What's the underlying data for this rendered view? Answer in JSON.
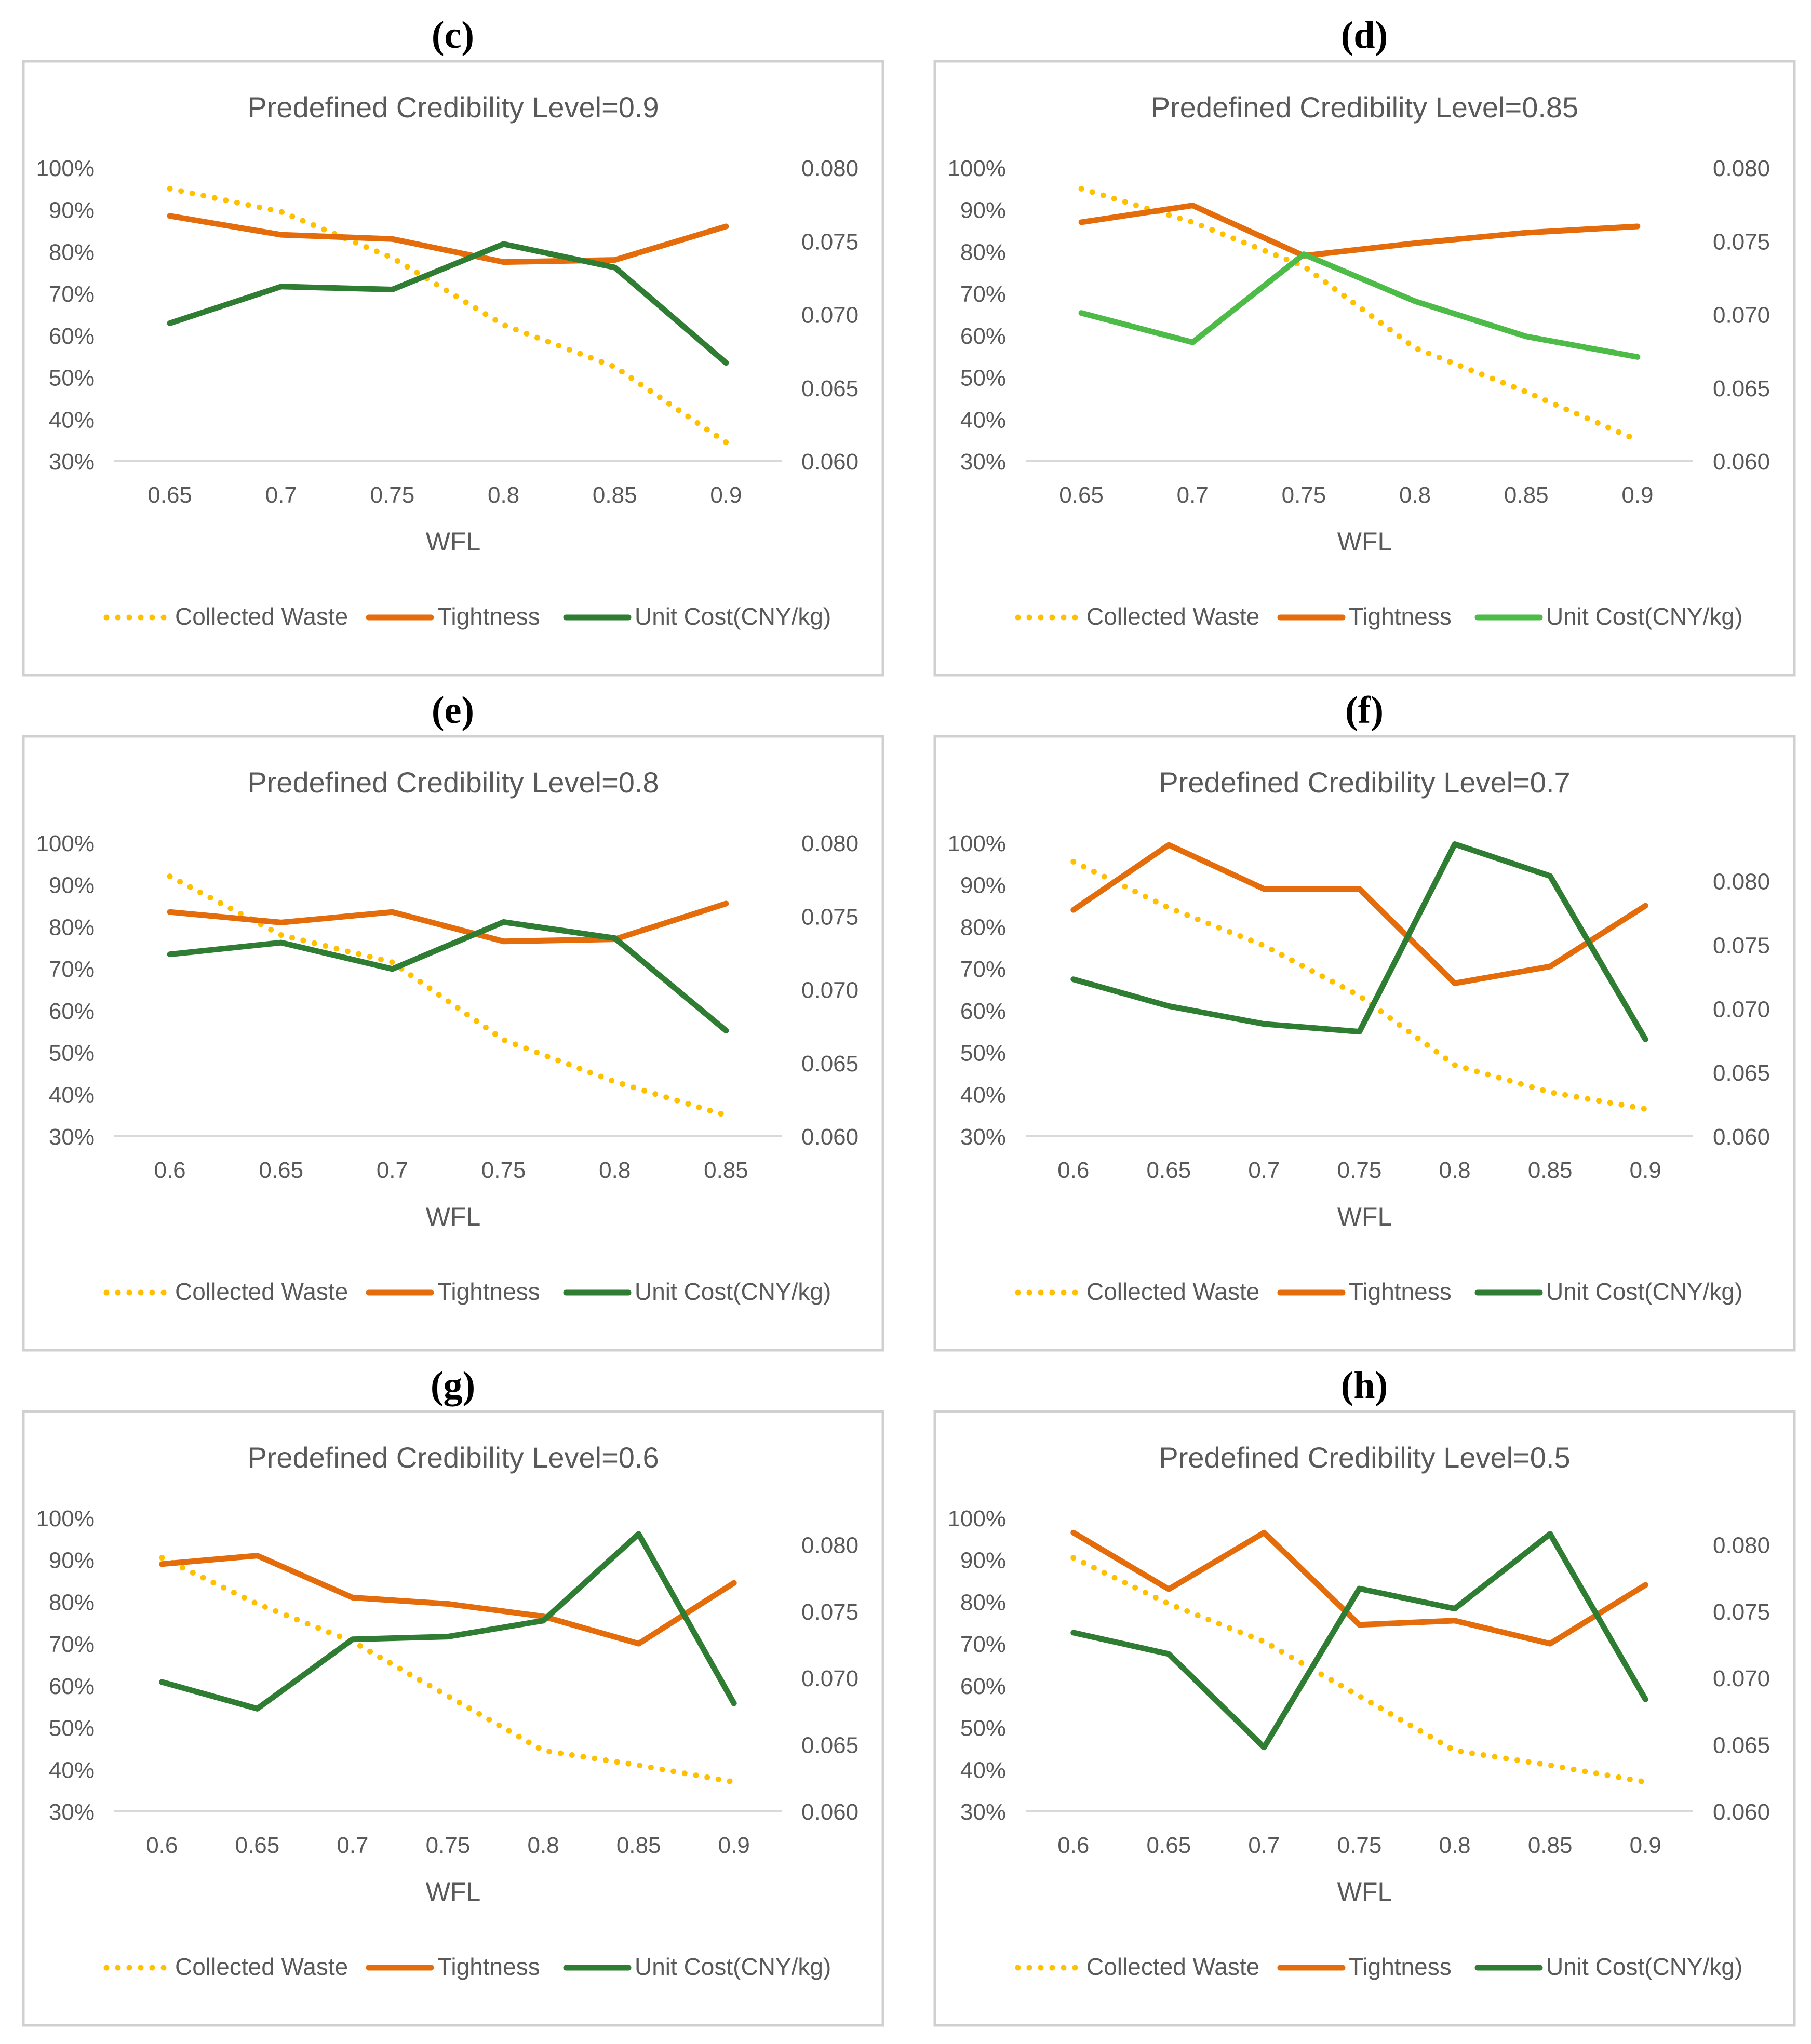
{
  "colors": {
    "collected": "#FFC000",
    "tightness": "#E46C0A",
    "unit_dark": "#2E7D32",
    "unit_light": "#4CBB47",
    "panel_border": "#D0D0D0",
    "text": "#595959",
    "axis": "#D9D9D9"
  },
  "chart_data": [
    {
      "panel_label": "(c)",
      "type": "line",
      "title": "Predefined Credibility Level=0.9",
      "xlabel": "WFL",
      "categories": [
        "0.65",
        "0.7",
        "0.75",
        "0.8",
        "0.85",
        "0.9"
      ],
      "y_left": {
        "range": [
          0.3,
          1.0
        ],
        "ticks": [
          "30%",
          "40%",
          "50%",
          "60%",
          "70%",
          "80%",
          "90%",
          "100%"
        ]
      },
      "y_right": {
        "range": [
          0.06,
          0.08
        ],
        "ticks": [
          "0.060",
          "0.065",
          "0.070",
          "0.075",
          "0.080"
        ]
      },
      "legend_position": "bottom",
      "series": [
        {
          "name": "Collected Waste",
          "axis": "left",
          "style": "dotted",
          "color_key": "collected",
          "values": [
            0.95,
            0.895,
            0.785,
            0.625,
            0.525,
            0.345
          ]
        },
        {
          "name": "Tightness",
          "axis": "left",
          "style": "solid",
          "color_key": "tightness",
          "values": [
            0.885,
            0.84,
            0.83,
            0.775,
            0.78,
            0.86
          ]
        },
        {
          "name": "Unit Cost(CNY/kg)",
          "axis": "right",
          "style": "solid",
          "color_key": "unit_dark",
          "values": [
            0.0694,
            0.0719,
            0.0717,
            0.0748,
            0.0732,
            0.0667
          ]
        }
      ]
    },
    {
      "panel_label": "(d)",
      "type": "line",
      "title": "Predefined Credibility Level=0.85",
      "xlabel": "WFL",
      "categories": [
        "0.65",
        "0.7",
        "0.75",
        "0.8",
        "0.85",
        "0.9"
      ],
      "y_left": {
        "range": [
          0.3,
          1.0
        ],
        "ticks": [
          "30%",
          "40%",
          "50%",
          "60%",
          "70%",
          "80%",
          "90%",
          "100%"
        ]
      },
      "y_right": {
        "range": [
          0.06,
          0.08
        ],
        "ticks": [
          "0.060",
          "0.065",
          "0.070",
          "0.075",
          "0.080"
        ]
      },
      "legend_position": "bottom",
      "series": [
        {
          "name": "Collected Waste",
          "axis": "left",
          "style": "dotted",
          "color_key": "collected",
          "values": [
            0.95,
            0.87,
            0.765,
            0.57,
            0.465,
            0.35
          ]
        },
        {
          "name": "Tightness",
          "axis": "left",
          "style": "solid",
          "color_key": "tightness",
          "values": [
            0.87,
            0.91,
            0.79,
            0.82,
            0.845,
            0.86
          ]
        },
        {
          "name": "Unit Cost(CNY/kg)",
          "axis": "right",
          "style": "solid",
          "color_key": "unit_light",
          "values": [
            0.0701,
            0.0681,
            0.0741,
            0.0709,
            0.0685,
            0.0671
          ]
        }
      ]
    },
    {
      "panel_label": "(e)",
      "type": "line",
      "title": "Predefined Credibility Level=0.8",
      "xlabel": "WFL",
      "categories": [
        "0.6",
        "0.65",
        "0.7",
        "0.75",
        "0.8",
        "0.85"
      ],
      "y_left": {
        "range": [
          0.3,
          1.0
        ],
        "ticks": [
          "30%",
          "40%",
          "50%",
          "60%",
          "70%",
          "80%",
          "90%",
          "100%"
        ]
      },
      "y_right": {
        "range": [
          0.06,
          0.08
        ],
        "ticks": [
          "0.060",
          "0.065",
          "0.070",
          "0.075",
          "0.080"
        ]
      },
      "legend_position": "bottom",
      "series": [
        {
          "name": "Collected Waste",
          "axis": "left",
          "style": "dotted",
          "color_key": "collected",
          "values": [
            0.92,
            0.78,
            0.715,
            0.53,
            0.43,
            0.35
          ]
        },
        {
          "name": "Tightness",
          "axis": "left",
          "style": "solid",
          "color_key": "tightness",
          "values": [
            0.835,
            0.81,
            0.835,
            0.765,
            0.77,
            0.855
          ]
        },
        {
          "name": "Unit Cost(CNY/kg)",
          "axis": "right",
          "style": "solid",
          "color_key": "unit_dark",
          "values": [
            0.0724,
            0.0732,
            0.0714,
            0.0746,
            0.0735,
            0.0672
          ]
        }
      ]
    },
    {
      "panel_label": "(f)",
      "type": "line",
      "title": "Predefined Credibility Level=0.7",
      "xlabel": "WFL",
      "categories": [
        "0.6",
        "0.65",
        "0.7",
        "0.75",
        "0.8",
        "0.85",
        "0.9"
      ],
      "y_left": {
        "range": [
          0.3,
          1.0
        ],
        "ticks": [
          "30%",
          "40%",
          "50%",
          "60%",
          "70%",
          "80%",
          "90%",
          "100%"
        ]
      },
      "y_right": {
        "range": [
          0.06,
          0.083
        ],
        "ticks": [
          "0.060",
          "0.065",
          "0.070",
          "0.075",
          "0.080"
        ]
      },
      "legend_position": "bottom",
      "series": [
        {
          "name": "Collected Waste",
          "axis": "left",
          "style": "dotted",
          "color_key": "collected",
          "values": [
            0.955,
            0.845,
            0.755,
            0.635,
            0.47,
            0.405,
            0.365
          ]
        },
        {
          "name": "Tightness",
          "axis": "left",
          "style": "solid",
          "color_key": "tightness",
          "values": [
            0.84,
            0.995,
            0.89,
            0.89,
            0.665,
            0.705,
            0.85
          ]
        },
        {
          "name": "Unit Cost(CNY/kg)",
          "axis": "right",
          "style": "solid",
          "color_key": "unit_dark",
          "values": [
            0.0723,
            0.0702,
            0.0688,
            0.0682,
            0.0829,
            0.0804,
            0.0676
          ]
        }
      ]
    },
    {
      "panel_label": "(g)",
      "type": "line",
      "title": "Predefined Credibility Level=0.6",
      "xlabel": "WFL",
      "categories": [
        "0.6",
        "0.65",
        "0.7",
        "0.75",
        "0.8",
        "0.85",
        "0.9"
      ],
      "y_left": {
        "range": [
          0.3,
          1.0
        ],
        "ticks": [
          "30%",
          "40%",
          "50%",
          "60%",
          "70%",
          "80%",
          "90%",
          "100%"
        ]
      },
      "y_right": {
        "range": [
          0.06,
          0.082
        ],
        "ticks": [
          "0.060",
          "0.065",
          "0.070",
          "0.075",
          "0.080"
        ]
      },
      "legend_position": "bottom",
      "series": [
        {
          "name": "Collected Waste",
          "axis": "left",
          "style": "dotted",
          "color_key": "collected",
          "values": [
            0.905,
            0.795,
            0.705,
            0.575,
            0.445,
            0.41,
            0.37
          ]
        },
        {
          "name": "Tightness",
          "axis": "left",
          "style": "solid",
          "color_key": "tightness",
          "values": [
            0.89,
            0.91,
            0.81,
            0.795,
            0.765,
            0.7,
            0.845
          ]
        },
        {
          "name": "Unit Cost(CNY/kg)",
          "axis": "right",
          "style": "solid",
          "color_key": "unit_dark",
          "values": [
            0.0697,
            0.0677,
            0.0729,
            0.0731,
            0.0743,
            0.0808,
            0.0681
          ]
        }
      ]
    },
    {
      "panel_label": "(h)",
      "type": "line",
      "title": "Predefined Credibility Level=0.5",
      "xlabel": "WFL",
      "categories": [
        "0.6",
        "0.65",
        "0.7",
        "0.75",
        "0.8",
        "0.85",
        "0.9"
      ],
      "y_left": {
        "range": [
          0.3,
          1.0
        ],
        "ticks": [
          "30%",
          "40%",
          "50%",
          "60%",
          "70%",
          "80%",
          "90%",
          "100%"
        ]
      },
      "y_right": {
        "range": [
          0.06,
          0.082
        ],
        "ticks": [
          "0.060",
          "0.065",
          "0.070",
          "0.075",
          "0.080"
        ]
      },
      "legend_position": "bottom",
      "series": [
        {
          "name": "Collected Waste",
          "axis": "left",
          "style": "dotted",
          "color_key": "collected",
          "values": [
            0.905,
            0.795,
            0.705,
            0.575,
            0.445,
            0.41,
            0.37
          ]
        },
        {
          "name": "Tightness",
          "axis": "left",
          "style": "solid",
          "color_key": "tightness",
          "values": [
            0.965,
            0.83,
            0.965,
            0.745,
            0.755,
            0.7,
            0.84
          ]
        },
        {
          "name": "Unit Cost(CNY/kg)",
          "axis": "right",
          "style": "solid",
          "color_key": "unit_dark",
          "values": [
            0.0734,
            0.0718,
            0.0648,
            0.0767,
            0.0752,
            0.0808,
            0.0684
          ]
        }
      ]
    }
  ]
}
